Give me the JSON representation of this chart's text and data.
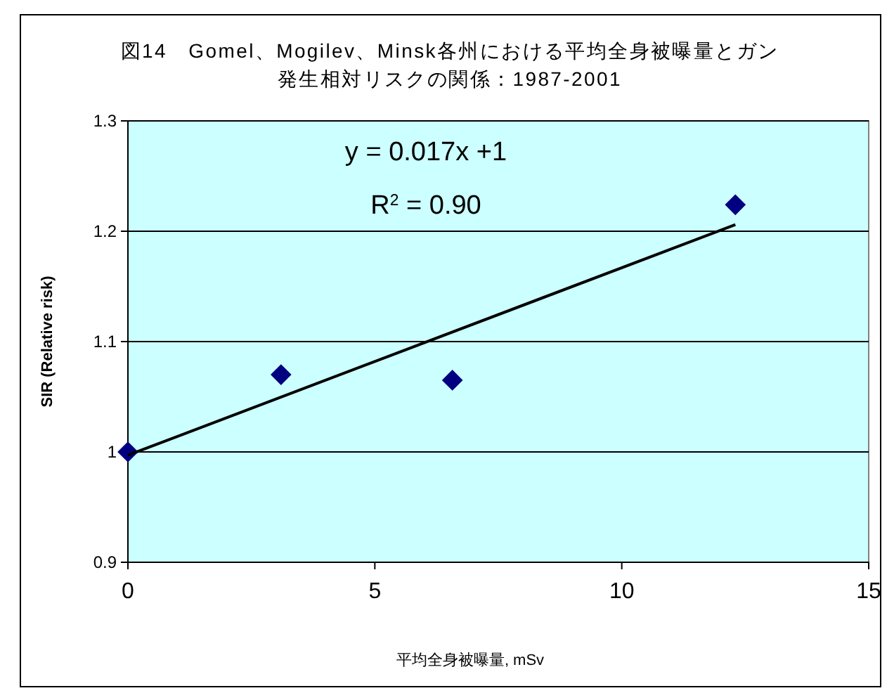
{
  "chart_data": {
    "type": "scatter",
    "title": "図14　Gomel、Mogilev、Minsk各州における平均全身被曝量とガン発生相対リスクの関係：1987-2001",
    "xlabel": "平均全身被曝量, mSv",
    "ylabel": "SIR (Relative risk)",
    "x": [
      0,
      3.1,
      6.57,
      12.3
    ],
    "series": [
      {
        "color": "#000080",
        "values": [
          1.0,
          1.07,
          1.065,
          1.224
        ],
        "marker": "diamond"
      },
      {
        "type": "line",
        "color": "#000000",
        "x": [
          0,
          12.3
        ],
        "values": [
          0.997,
          1.206
        ],
        "marker": "none"
      }
    ],
    "annotations": [
      "y = 0.017x +1",
      "R$^{2}$ = 0.90"
    ],
    "xlim": [
      0,
      15
    ],
    "xticks": [
      0,
      5,
      10,
      15
    ],
    "ylim": [
      0.9,
      1.3
    ],
    "yticks": [
      0.9,
      1,
      1.1,
      1.2,
      1.3
    ],
    "grid": "y"
  }
}
